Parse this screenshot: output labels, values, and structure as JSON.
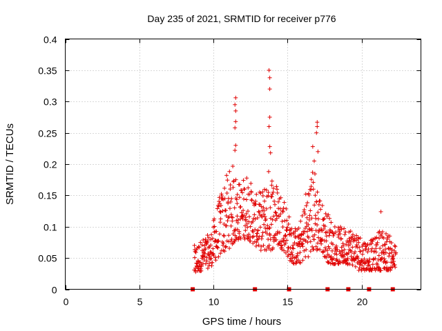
{
  "chart_data": {
    "type": "scatter",
    "title": "Day 235 of 2021, SRMTID for receiver p776",
    "xlabel": "GPS time / hours",
    "ylabel": "SRMTID / TECUs",
    "xlim": [
      0,
      24
    ],
    "ylim": [
      0,
      0.4
    ],
    "xticks": [
      0,
      5,
      10,
      15,
      20
    ],
    "xtick_labels": [
      "0",
      "5",
      "10",
      "15",
      "20"
    ],
    "yticks": [
      0,
      0.05,
      0.1,
      0.15,
      0.2,
      0.25,
      0.3,
      0.35,
      0.4
    ],
    "ytick_labels": [
      "0",
      "0.05",
      "0.1",
      "0.15",
      "0.2",
      "0.25",
      "0.3",
      "0.35",
      "0.4"
    ],
    "grid": true,
    "marker": "plus",
    "color": "#e00000",
    "envelope_x": [
      8.7,
      9.2,
      9.8,
      10.3,
      10.8,
      11.3,
      11.8,
      12.3,
      12.8,
      13.3,
      13.8,
      14.3,
      14.8,
      15.3,
      15.8,
      16.3,
      16.8,
      17.3,
      17.8,
      18.3,
      18.8,
      19.3,
      19.8,
      20.3,
      20.8,
      21.3,
      21.8,
      22.3
    ],
    "envelope_low": [
      0.02,
      0.03,
      0.035,
      0.05,
      0.06,
      0.07,
      0.08,
      0.08,
      0.07,
      0.06,
      0.06,
      0.07,
      0.06,
      0.04,
      0.04,
      0.05,
      0.06,
      0.06,
      0.04,
      0.04,
      0.04,
      0.04,
      0.03,
      0.03,
      0.03,
      0.03,
      0.03,
      0.03
    ],
    "envelope_high": [
      0.07,
      0.08,
      0.09,
      0.14,
      0.18,
      0.2,
      0.17,
      0.19,
      0.15,
      0.16,
      0.2,
      0.17,
      0.15,
      0.1,
      0.1,
      0.17,
      0.2,
      0.14,
      0.12,
      0.1,
      0.1,
      0.1,
      0.09,
      0.08,
      0.08,
      0.1,
      0.09,
      0.07
    ],
    "peaks": [
      {
        "x": 11.5,
        "y": 0.306
      },
      {
        "x": 11.45,
        "y": 0.295
      },
      {
        "x": 11.5,
        "y": 0.285
      },
      {
        "x": 11.5,
        "y": 0.268
      },
      {
        "x": 11.45,
        "y": 0.258
      },
      {
        "x": 11.5,
        "y": 0.23
      },
      {
        "x": 11.45,
        "y": 0.222
      },
      {
        "x": 13.75,
        "y": 0.35
      },
      {
        "x": 13.8,
        "y": 0.338
      },
      {
        "x": 13.8,
        "y": 0.32
      },
      {
        "x": 13.8,
        "y": 0.275
      },
      {
        "x": 13.75,
        "y": 0.26
      },
      {
        "x": 13.8,
        "y": 0.228
      },
      {
        "x": 13.85,
        "y": 0.218
      },
      {
        "x": 17.0,
        "y": 0.267
      },
      {
        "x": 17.0,
        "y": 0.26
      },
      {
        "x": 16.95,
        "y": 0.25
      },
      {
        "x": 17.05,
        "y": 0.22
      },
      {
        "x": 16.7,
        "y": 0.228
      },
      {
        "x": 16.8,
        "y": 0.205
      },
      {
        "x": 21.3,
        "y": 0.124
      }
    ],
    "rug_x": [
      8.6,
      12.8,
      15.1,
      17.7,
      19.1,
      20.5,
      22.1
    ]
  }
}
